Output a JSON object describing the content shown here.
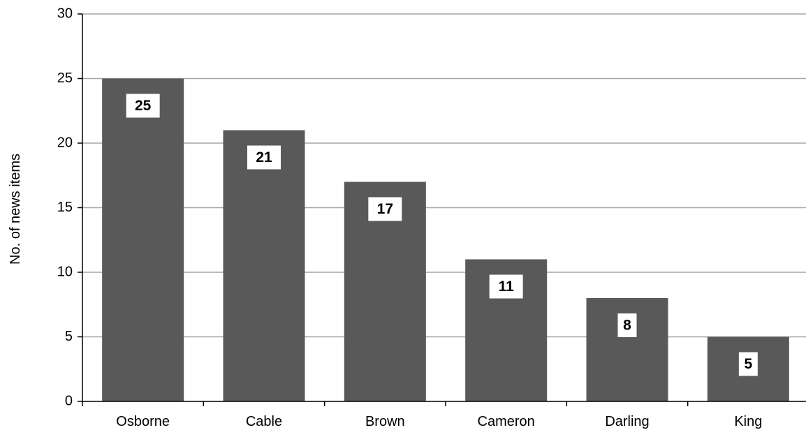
{
  "chart_data": {
    "type": "bar",
    "categories": [
      "Osborne",
      "Cable",
      "Brown",
      "Cameron",
      "Darling",
      "King"
    ],
    "values": [
      25,
      21,
      17,
      11,
      8,
      5
    ],
    "data_labels": [
      "25",
      "21",
      "17",
      "11",
      "8",
      "5"
    ],
    "title": "",
    "xlabel": "",
    "ylabel": "No. of news items",
    "ylim": [
      0,
      30
    ],
    "yticks": [
      0,
      5,
      10,
      15,
      20,
      25,
      30
    ],
    "ytick_labels": [
      "0",
      "5",
      "10",
      "15",
      "20",
      "25",
      "30"
    ],
    "grid": true,
    "legend": "none",
    "colors": {
      "bar": "#595959",
      "gridline": "#a6a6a6",
      "axis": "#000000",
      "label_box": "#ffffff"
    }
  }
}
